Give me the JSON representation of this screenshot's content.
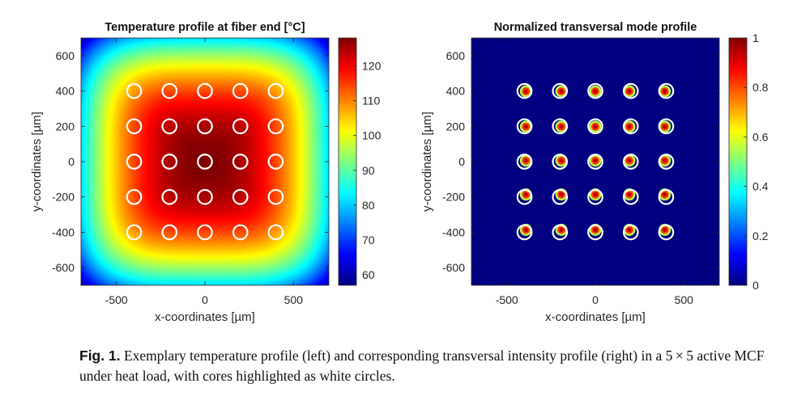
{
  "figure": {
    "caption_label": "Fig. 1.",
    "caption_text": "Exemplary temperature profile (left) and corresponding transversal intensity profile (right) in a 5 × 5 active MCF under heat load, with cores highlighted as white circles."
  },
  "chart_data": [
    {
      "type": "heatmap",
      "title": "Temperature profile at fiber end [°C]",
      "xlabel": "x-coordinates [µm]",
      "ylabel": "y-coordinates [µm]",
      "xlim": [
        -700,
        700
      ],
      "ylim": [
        -700,
        700
      ],
      "xticks": [
        -500,
        0,
        500
      ],
      "xtick_labels": [
        "-500",
        "0",
        "500"
      ],
      "yticks": [
        600,
        400,
        200,
        0,
        -200,
        -400,
        -600
      ],
      "ytick_labels": [
        "600",
        "400",
        "200",
        "0",
        "-200",
        "-400",
        "-600"
      ],
      "colorbar": {
        "min": 57,
        "max": 128,
        "ticks": [
          120,
          110,
          100,
          90,
          80,
          70,
          60
        ],
        "tick_labels": [
          "120",
          "110",
          "100",
          "90",
          "80",
          "70",
          "60"
        ]
      },
      "center_value": 128,
      "corner_value": 58,
      "colormap": "jet",
      "core_positions_um": [
        -400,
        -200,
        0,
        200,
        400
      ],
      "core_circle_color": "#ffffff"
    },
    {
      "type": "heatmap",
      "title": "Normalized transversal mode profile",
      "xlabel": "x-coordinates [µm]",
      "ylabel": "y-coordinates [µm]",
      "xlim": [
        -700,
        700
      ],
      "ylim": [
        -700,
        700
      ],
      "xticks": [
        -500,
        0,
        500
      ],
      "xtick_labels": [
        "-500",
        "0",
        "500"
      ],
      "yticks": [
        600,
        400,
        200,
        0,
        -200,
        -400,
        -600
      ],
      "ytick_labels": [
        "600",
        "400",
        "200",
        "0",
        "-200",
        "-400",
        "-600"
      ],
      "colorbar": {
        "min": 0,
        "max": 1,
        "ticks": [
          1,
          0.8,
          0.6,
          0.4,
          0.2,
          0
        ],
        "tick_labels": [
          "1",
          "0.8",
          "0.6",
          "0.4",
          "0.2",
          "0"
        ]
      },
      "background_value": 0,
      "colormap": "jet",
      "core_positions_um": [
        -400,
        -200,
        0,
        200,
        400
      ],
      "core_circle_color": "#ffffff"
    }
  ]
}
